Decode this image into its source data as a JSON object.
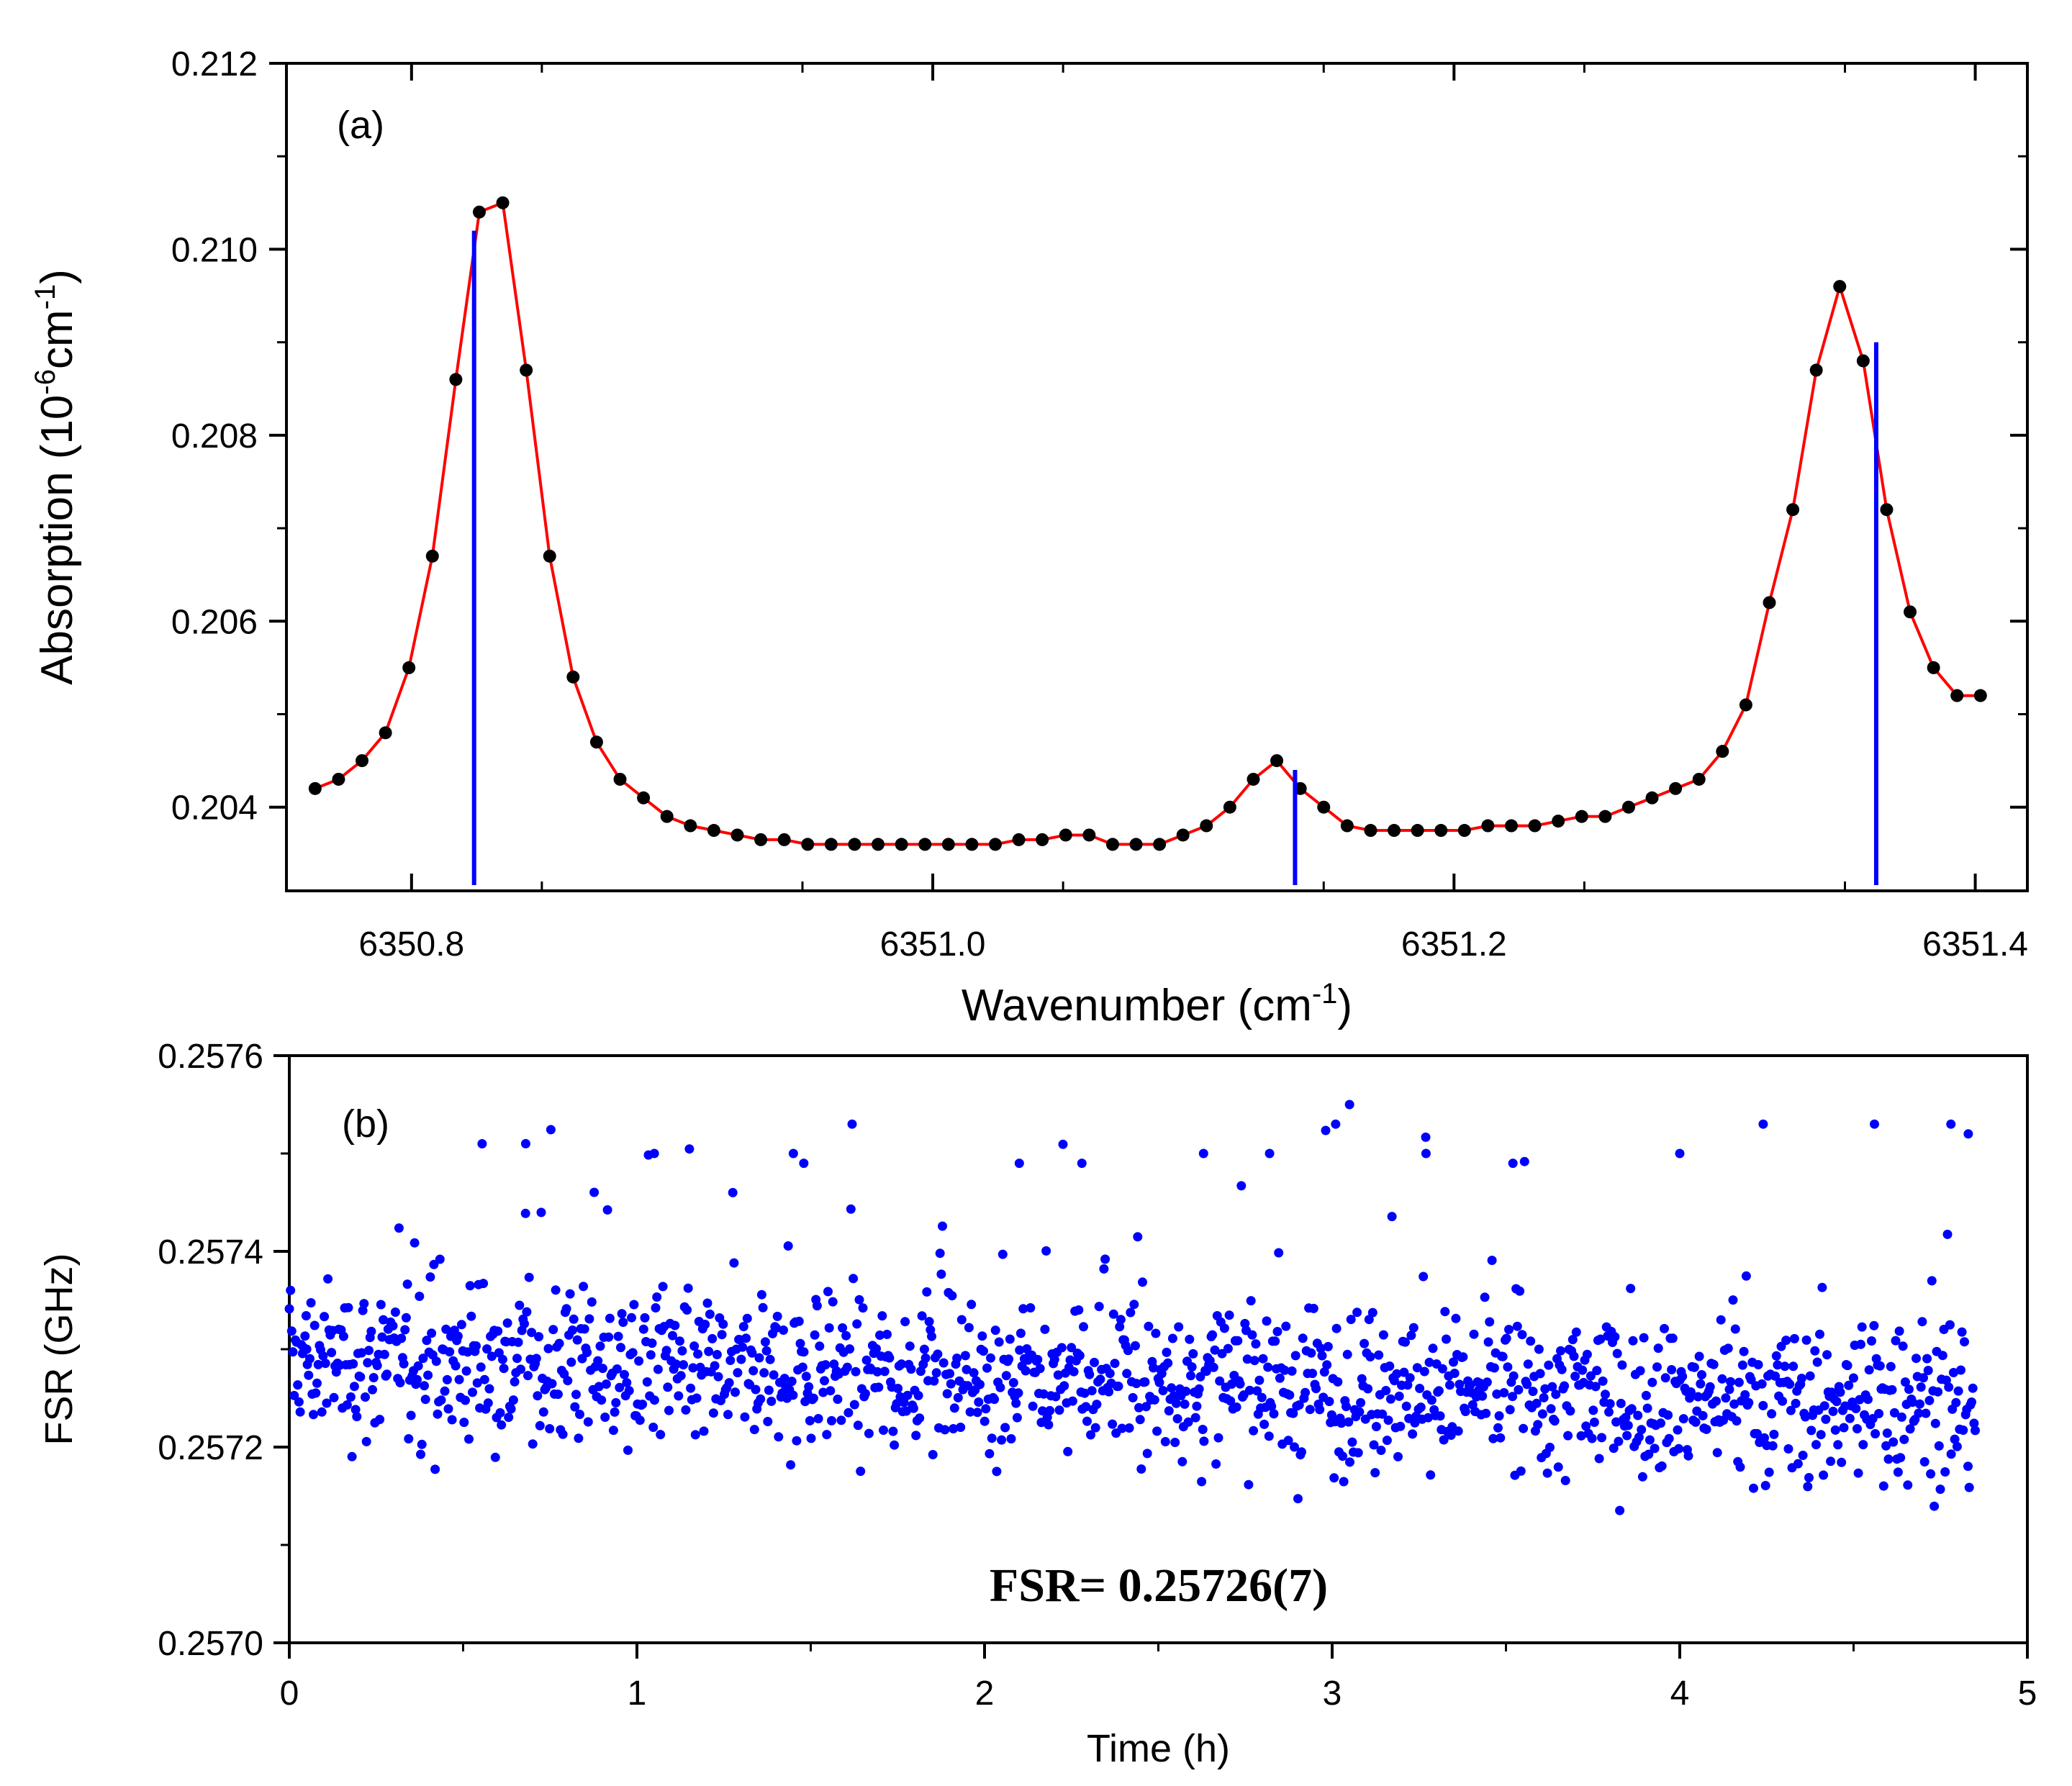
{
  "chart_data": [
    {
      "type": "line",
      "panel_label": "(a)",
      "xlabel": "Wavenumber (cm",
      "xlabel_sup": "-1",
      "xlabel_close": ")",
      "ylabel": "Absorption (10",
      "ylabel_sup1": "-6",
      "ylabel_mid": "cm",
      "ylabel_sup2": "-1",
      "ylabel_close": ")",
      "xlim": [
        6350.752,
        6351.42
      ],
      "ylim": [
        0.2031,
        0.212
      ],
      "xticks": [
        6350.8,
        6351.0,
        6351.2,
        6351.4
      ],
      "xtick_labels": [
        "6350.8",
        "6351.0",
        "6351.2",
        "6351.4"
      ],
      "yticks": [
        0.204,
        0.206,
        0.208,
        0.21,
        0.212
      ],
      "ytick_labels": [
        "0.204",
        "0.206",
        "0.208",
        "0.210",
        "0.212"
      ],
      "grid": false,
      "series": [
        {
          "kind": "points_with_line",
          "marker_color": "#000000",
          "line_color": "#ff0000",
          "x": [
            6350.763,
            6350.772,
            6350.781,
            6350.79,
            6350.799,
            6350.808,
            6350.817,
            6350.826,
            6350.835,
            6350.844,
            6350.853,
            6350.862,
            6350.871,
            6350.88,
            6350.889,
            6350.898,
            6350.907,
            6350.916,
            6350.925,
            6350.934,
            6350.943,
            6350.952,
            6350.961,
            6350.97,
            6350.979,
            6350.988,
            6350.997,
            6351.006,
            6351.015,
            6351.024,
            6351.033,
            6351.042,
            6351.051,
            6351.06,
            6351.069,
            6351.078,
            6351.087,
            6351.096,
            6351.105,
            6351.114,
            6351.123,
            6351.132,
            6351.141,
            6351.15,
            6351.159,
            6351.168,
            6351.177,
            6351.186,
            6351.195,
            6351.204,
            6351.213,
            6351.222,
            6351.231,
            6351.24,
            6351.249,
            6351.258,
            6351.267,
            6351.276,
            6351.285,
            6351.294,
            6351.303,
            6351.312,
            6351.321,
            6351.33,
            6351.339,
            6351.348,
            6351.357,
            6351.366,
            6351.375,
            6351.384,
            6351.393,
            6351.402
          ],
          "y": [
            0.2042,
            0.2043,
            0.2045,
            0.2048,
            0.2055,
            0.2067,
            0.2086,
            0.2104,
            0.2105,
            0.2087,
            0.2067,
            0.2054,
            0.2047,
            0.2043,
            0.2041,
            0.2039,
            0.2038,
            0.20375,
            0.2037,
            0.20365,
            0.20365,
            0.2036,
            0.2036,
            0.2036,
            0.2036,
            0.2036,
            0.2036,
            0.2036,
            0.2036,
            0.2036,
            0.20365,
            0.20365,
            0.2037,
            0.2037,
            0.2036,
            0.2036,
            0.2036,
            0.2037,
            0.2038,
            0.204,
            0.2043,
            0.2045,
            0.2042,
            0.204,
            0.2038,
            0.20375,
            0.20375,
            0.20375,
            0.20375,
            0.20375,
            0.2038,
            0.2038,
            0.2038,
            0.20385,
            0.2039,
            0.2039,
            0.204,
            0.2041,
            0.2042,
            0.2043,
            0.2046,
            0.2051,
            0.2062,
            0.2072,
            0.2087,
            0.2096,
            0.2088,
            0.2072,
            0.2061,
            0.2055,
            0.2052,
            0.2052
          ]
        },
        {
          "kind": "sticks",
          "color": "#0000ff",
          "x": [
            6350.824,
            6351.139,
            6351.362
          ],
          "y": [
            0.2102,
            0.2044,
            0.209
          ]
        }
      ]
    },
    {
      "type": "scatter",
      "panel_label": "(b)",
      "xlabel": "Time (h)",
      "ylabel": "FSR (GHz)",
      "annotation": "FSR= 0.25726(7)",
      "xlim": [
        0,
        5
      ],
      "ylim": [
        0.257,
        0.2576
      ],
      "xticks": [
        0,
        1,
        2,
        3,
        4,
        5
      ],
      "xtick_labels": [
        "0",
        "1",
        "2",
        "3",
        "4",
        "5"
      ],
      "yticks": [
        0.257,
        0.2572,
        0.2574,
        0.2576
      ],
      "ytick_labels": [
        "0.2570",
        "0.2572",
        "0.2574",
        "0.2576"
      ],
      "grid": false,
      "series": [
        {
          "color": "#0000ff",
          "n_points": 1400,
          "x_range": [
            0,
            4.85
          ],
          "mean": 0.25726,
          "spread": 7e-05,
          "x": [
            0.05,
            0.68,
            1.05,
            1.45,
            1.48,
            2.1,
            2.28,
            2.63,
            2.82,
            3.01,
            3.05,
            3.27,
            3.52,
            4.0,
            4.24,
            4.56,
            4.78,
            4.83
          ],
          "y": [
            0.2573,
            0.25751,
            0.2575,
            0.2575,
            0.25749,
            0.25749,
            0.25749,
            0.2575,
            0.2575,
            0.25753,
            0.25755,
            0.2575,
            0.25749,
            0.2575,
            0.25753,
            0.25753,
            0.25753,
            0.25752
          ]
        }
      ]
    }
  ]
}
